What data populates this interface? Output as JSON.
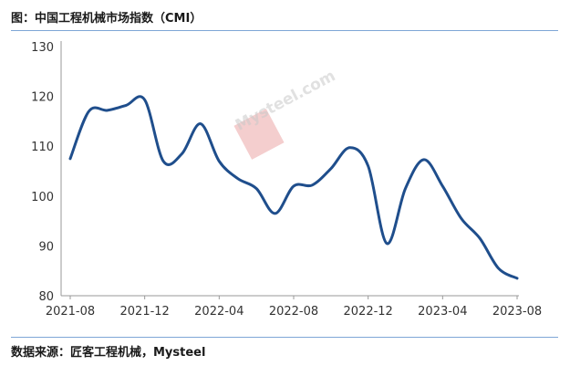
{
  "header": {
    "title": "图：中国工程机械市场指数（CMI）"
  },
  "footer": {
    "source": "数据来源：匠客工程机械，Mysteel"
  },
  "watermark": {
    "text": "Mysteel.com"
  },
  "colors": {
    "line": "#1f4e8c",
    "rule": "#7fa6d6",
    "axis": "#999999"
  },
  "chart_data": {
    "type": "line",
    "title": "中国工程机械市场指数（CMI）",
    "xlabel": "",
    "ylabel": "",
    "ylim": [
      80,
      130
    ],
    "yticks": [
      80,
      90,
      100,
      110,
      120,
      130
    ],
    "xticks": [
      "2021-08",
      "2021-12",
      "2022-04",
      "2022-08",
      "2022-12",
      "2023-04",
      "2023-08"
    ],
    "grid": false,
    "legend": "none",
    "series": [
      {
        "x": [
          "2021-08",
          "2021-09",
          "2021-10",
          "2021-11",
          "2021-12",
          "2022-01",
          "2022-02",
          "2022-03",
          "2022-04",
          "2022-05",
          "2022-06",
          "2022-07",
          "2022-08",
          "2022-09",
          "2022-10",
          "2022-11",
          "2022-12",
          "2023-01",
          "2023-02",
          "2023-03",
          "2023-04",
          "2023-05",
          "2023-06",
          "2023-07",
          "2023-08"
        ],
        "values": [
          107.5,
          117.0,
          117.2,
          118.2,
          119.3,
          107.0,
          108.5,
          114.5,
          107.0,
          103.5,
          101.5,
          96.5,
          102.0,
          102.2,
          105.5,
          109.7,
          106.0,
          90.5,
          101.5,
          107.3,
          102.0,
          95.5,
          91.5,
          85.5,
          83.5
        ]
      }
    ]
  }
}
